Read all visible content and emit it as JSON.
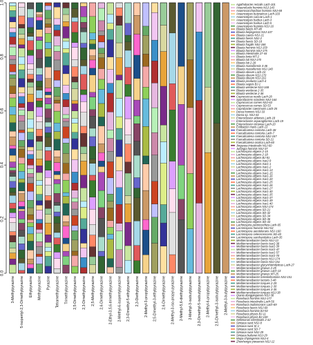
{
  "chart_data": {
    "type": "bar",
    "stacked": true,
    "ylim": [
      0,
      1
    ],
    "y_ticks": [
      "0.0",
      "0.2",
      "0.4",
      "0.6",
      "0.8",
      "1.0"
    ],
    "categories": [
      "3-Methylpyrazine",
      "5-isopentyl-2,3-Dimethylpyrazine",
      "Ethylpyrazine",
      "Methylpyrazine",
      "Pyrazine",
      "Tetramethylpyrazine",
      "Trimethylpyrazine",
      "2,5-Dimethylpyrazine",
      "2,3-Dimethylpyrazine",
      "2,5-Methylpyrazine",
      "2,6-Dimethylpyrazine",
      "2-Ethyl-3,5,6-trimethylpyrazine",
      "2-Methyl-6-isopentylpyrazine",
      "2,3-Dimethyl-5-ethylpyrazine",
      "2,3-Diethylpyrazine",
      "2-Methyl-3-propylpyrazine",
      "2,5-Dimethyl-3-ethylpyrazine",
      "2,6-Dimethylpyrazine",
      "2-Methyl-3-iso-propyl-pyrazine",
      "2-Methyl-5,6-diethylpyrazine",
      "2-Methyl-3-isobutylpyrazine",
      "2,3-Dimethyl-5-isobutylpyrazine",
      "2-Methyl-6-propylpyrazine",
      "2,5-Dimethyl-3-isobutylpyrazine",
      "2-Methyl-3-butylpyrazine"
    ],
    "bar_segment_counts": [
      48,
      46,
      44,
      42,
      40,
      38,
      36,
      34,
      30,
      28,
      26,
      24,
      20,
      18,
      16,
      14,
      12,
      10,
      8,
      6,
      5,
      4,
      3,
      2,
      1
    ],
    "legend": [
      "Agathobacter rectalis Lach-101",
      "Anaerofustis hominis NSJ-143",
      "Anaerosaccharibius hominis NSJ-68",
      "Anaerostipes butyraticus Lach-103",
      "Anaerostipes caccae Lach-1",
      "Anaerostipes hadrus Lach-3",
      "Anaerostipes hadrus Lach-5",
      "Anaerostipes hominis NSJ-16",
      "Blautia faecis MT-48",
      "Blautia beijingensis NSJ-107",
      "Blautia caecis NSJ-21",
      "Blautia faecis NSJ-2",
      "Blautia faecis SD-18",
      "Blautia fragilis NSJ-166",
      "Blautia hominis NSJ-159",
      "Blautia hominis NSJ-175",
      "Blautia intestinalis 27-44",
      "Blautia lenta MT-2",
      "Blautia luti NSJ-170",
      "Blautia luti 2-28",
      "Blautia massiliensis 4-46",
      "Blautia massiliensis NSJ-140",
      "Blautia obeum Lach-24",
      "Blautia obeum NSJ-170",
      "Blautia obeum NSJ-161",
      "Blautia producta Lach-4",
      "Blautia segnis BJ-1",
      "Blautia wexlerae NSJ-168",
      "Blautia wexlerae 2-35",
      "Blautia wexlerae 2-36",
      "Coprococcus nexile Lach-28",
      "Sporofaciens scindens NSJ-164",
      "Coprococcus comes NSJ-63",
      "Coprococcus comes SD-53",
      "Coprobacter caecimuris Lach-25",
      "Dorea hominis NSJ-33",
      "Dorea sp. NSJ-44",
      "Enterocloster aldensis Lach-18",
      "Enterocloster asparagiformis Lach-19",
      "Enterocloster citroniae Lach-20",
      "Extibacter muris Lach-13",
      "Faecalicatena contorta Lach-48",
      "Faecalicatena contorta Lach-7",
      "Faecalicatena contorta NSJ-167",
      "Faecalicatena contorta SD-21",
      "Faecalicatena orotica Lach-60",
      "Jingyaoa intestinalis NSJ-60",
      "Jutongia hominis NSJ-37",
      "Lachnospira eligens 2-15",
      "Lachnospira eligens 2-18",
      "Lachnospira eligens BJ-81",
      "Lachnospira eligens Isar2-9",
      "Lachnospira eligens Isar1-1",
      "Lachnospira eligens Isar1-2",
      "Lachnospira eligens Isar1-13",
      "Lachnospira eligens Isar1-15",
      "Lachnospira eligens Isar1-16",
      "Lachnospira eligens Isar1-20",
      "Lachnospira eligens Isar1-25",
      "Lachnospira eligens Isar1-26",
      "Lachnospira eligens Isar1-27",
      "Lachnospira eligens Isar1-30",
      "Lachnospira eligens Isar1-35",
      "Lachnospira eligens Isar1-37",
      "Lachnospira eligens Isar1-39",
      "Lachnospira eligens Isar1-40",
      "Lachnospira eligens NSJ-174",
      "Lachnospira eligens SD-21",
      "Lachnospira eligens SD-32",
      "Lachnospira eligens SD-34",
      "Lachnospira eligens SD-36",
      "Lachnospira eligens SD-43",
      "Lachnospira pectinoschiza Lach-65",
      "Lacrimispora hominis NSJ-54",
      "Lacrimispora aerotolerans NSJ-160",
      "Lacrimispora celerecrescens SD-40",
      "Lacrimispora saccharolytica Lach-35",
      "Mediterraneibacter faecis NSJ-13",
      "Mediterraneibacter faecis Isar2-38",
      "Mediterraneibacter faecis Isar2-39",
      "Mediterraneibacter faecis Isar2-47",
      "Mediterraneibacter faecis Isar2-57",
      "Mediterraneibacter faecis Isar2-70",
      "Mediterraneibacter faecis NSJ-174",
      "Mediterraneibacter faecis NSJ-151",
      "Mediterraneibacter glycyrrhizinilyticus Lach-27",
      "Mediterraneibacter gnavus 2-25",
      "Mediterraneibacter gnavus Lach-13",
      "Mediterraneibacter gnavus MT-25",
      "Mediterraneibacter intestinihominis NSJ-151",
      "Mediterraneibacter lactaris 3-48",
      "Mediterraneibacter torques 2-29",
      "Mediterraneibacter torques 2-30",
      "Mediterraneibacter torques 3-35",
      "Mediterraneibacter torques NSJ-38",
      "Qiania dongpingensis NSJ-38",
      "Roseburia hominis NSJ-177",
      "Roseburia intestinalis Lach-56",
      "Roseburia inulinivorans Lach-69",
      "Roseburia faecis NSJ-69",
      "Roseburia hominis BJ-92",
      "Roseburia physis BJ-11",
      "Roseburia physis BJ-100",
      "Sellimonas intestinalis 2-42",
      "Simiaoa sunii NSJ-8",
      "Simiaoa sunii SI-1",
      "Simiaoa sunii SD-7",
      "Simiaoa sunii NSJ-29",
      "Simiaoa helianei NSJ-29",
      "Wujia chipingensis NSJ-4",
      "Zhenhengia yiwuensis NSJ-12"
    ]
  }
}
